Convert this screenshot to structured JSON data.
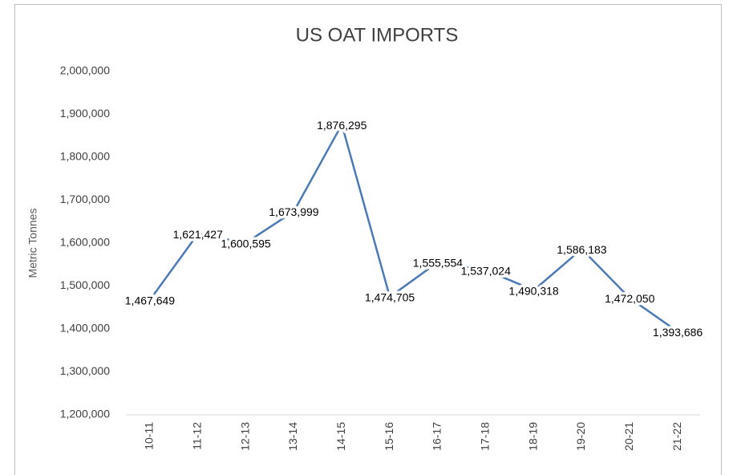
{
  "chart_data": {
    "type": "line",
    "title": "US OAT IMPORTS",
    "y_label": "Metric Tonnes",
    "categories": [
      "10-11",
      "11-12",
      "12-13",
      "13-14",
      "14-15",
      "15-16",
      "16-17",
      "17-18",
      "18-19",
      "19-20",
      "20-21",
      "21-22"
    ],
    "series": [
      {
        "name": "US Oat Imports",
        "color": "#4a7ab5",
        "values": [
          1467649,
          1621427,
          1600595,
          1673999,
          1876295,
          1474705,
          1555554,
          1537024,
          1490318,
          1586183,
          1472050,
          1393686
        ],
        "value_labels": [
          "1,467,649",
          "1,621,427",
          "1,600,595",
          "1,673,999",
          "1,876,295",
          "1,474,705",
          "1,555,554",
          "1,537,024",
          "1,490,318",
          "1,586,183",
          "1,472,050",
          "1,393,686"
        ]
      }
    ],
    "ylim": [
      1200000,
      2000000
    ],
    "yticks": [
      {
        "value": 1200000,
        "label": "1,200,000"
      },
      {
        "value": 1300000,
        "label": "1,300,000"
      },
      {
        "value": 1400000,
        "label": "1,400,000"
      },
      {
        "value": 1500000,
        "label": "1,500,000"
      },
      {
        "value": 1600000,
        "label": "1,600,000"
      },
      {
        "value": 1700000,
        "label": "1,700,000"
      },
      {
        "value": 1800000,
        "label": "1,800,000"
      },
      {
        "value": 1900000,
        "label": "1,900,000"
      },
      {
        "value": 2000000,
        "label": "2,000,000"
      }
    ],
    "grid": false
  }
}
